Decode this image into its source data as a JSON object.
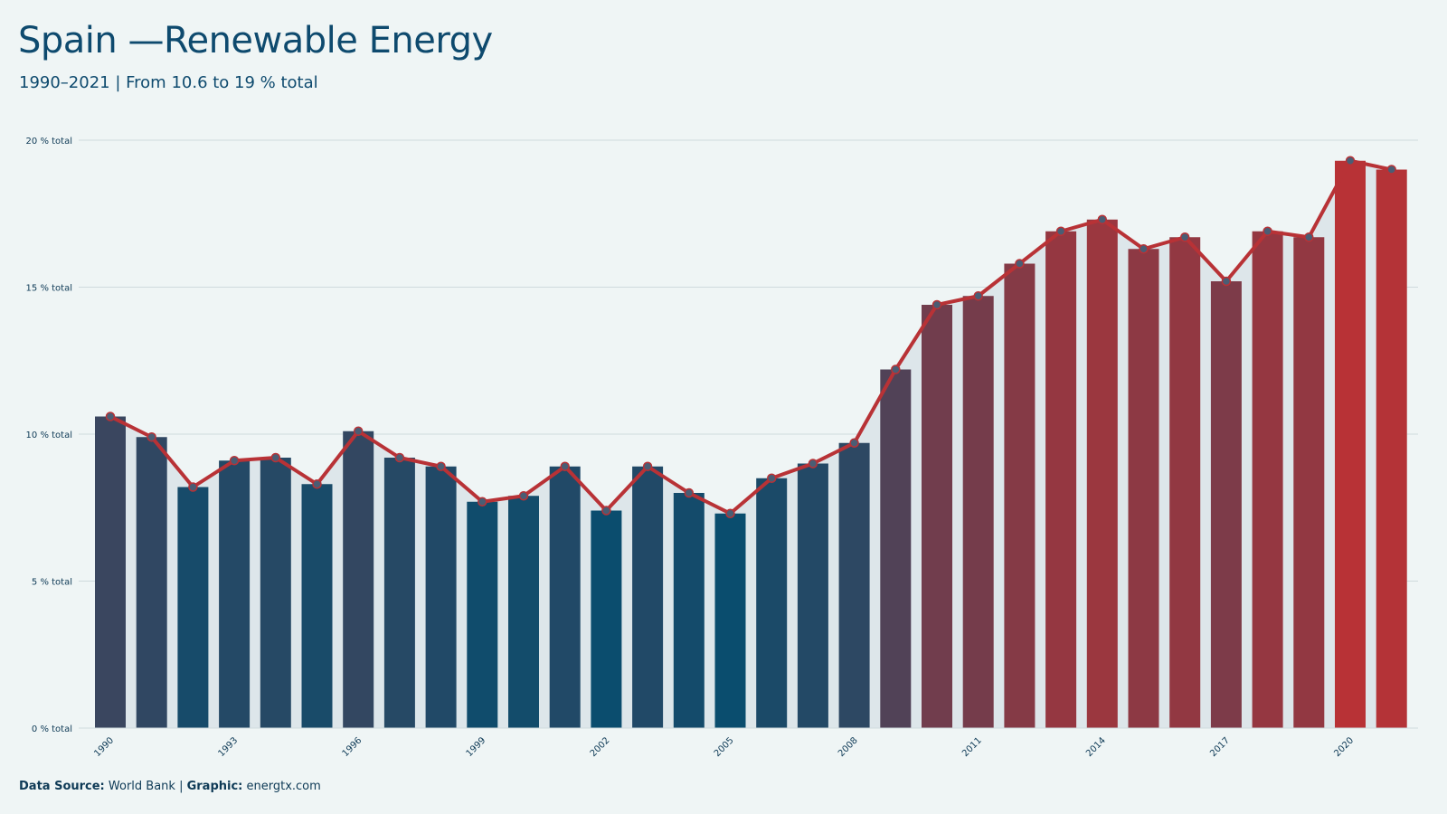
{
  "header": {
    "title": "Spain —Renewable Energy",
    "subtitle": "1990–2021 | From 10.6 to 19 % total"
  },
  "footer": {
    "source_label": "Data Source:",
    "source_value": " World Bank | ",
    "graphic_label": "Graphic:",
    "graphic_value": " energtx.com"
  },
  "colors": {
    "background": "#eff5f5",
    "band": "#dde6ea",
    "low": "#0a4d6e",
    "high": "#b83236",
    "line": "#b83236",
    "text": "#0e4a6e"
  },
  "chart_data": {
    "type": "bar",
    "x": [
      1990,
      1991,
      1992,
      1993,
      1994,
      1995,
      1996,
      1997,
      1998,
      1999,
      2000,
      2001,
      2002,
      2003,
      2004,
      2005,
      2006,
      2007,
      2008,
      2009,
      2010,
      2011,
      2012,
      2013,
      2014,
      2015,
      2016,
      2017,
      2018,
      2019,
      2020,
      2021
    ],
    "values": [
      10.6,
      9.9,
      8.2,
      9.1,
      9.2,
      8.3,
      10.1,
      9.2,
      8.9,
      7.7,
      7.9,
      8.9,
      7.4,
      8.9,
      8.0,
      7.3,
      8.5,
      9.0,
      9.7,
      12.2,
      14.4,
      14.7,
      15.8,
      16.9,
      17.3,
      16.3,
      16.7,
      15.2,
      16.9,
      16.7,
      19.3,
      19.0
    ],
    "xticks": [
      "1990",
      "1993",
      "1996",
      "1999",
      "2002",
      "2005",
      "2008",
      "2011",
      "2014",
      "2017",
      "2020"
    ],
    "xtick_years": [
      1990,
      1993,
      1996,
      1999,
      2002,
      2005,
      2008,
      2011,
      2014,
      2017,
      2020
    ],
    "yticks": [
      0,
      5,
      10,
      15,
      20
    ],
    "ytick_labels": [
      "0 % total",
      "5 % total",
      "10 % total",
      "15 % total",
      "20 % total"
    ],
    "ylim": [
      0,
      20
    ],
    "grid": true,
    "overlay": "line-with-markers"
  }
}
